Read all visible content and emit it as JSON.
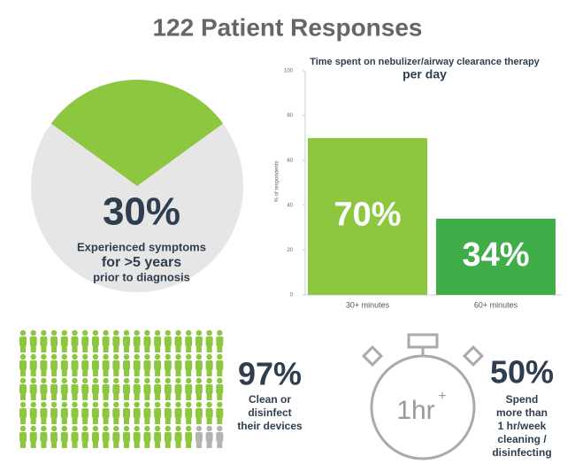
{
  "title": "122 Patient Responses",
  "chart_data": [
    {
      "type": "pie",
      "values": [
        30
      ],
      "value_labels": [
        "30%"
      ],
      "colors": [
        "#8dc63f",
        "#e6e6e6"
      ],
      "caption": [
        "Experienced symptoms",
        "for >5 years",
        "prior to diagnosis"
      ]
    },
    {
      "type": "bar",
      "title": "Time spent on nebulizer/airway clearance therapy",
      "subtitle": "per day",
      "ylabel": "% of respondents",
      "categories": [
        "30+ minutes",
        "60+ minutes"
      ],
      "values": [
        70,
        34
      ],
      "value_labels": [
        "70%",
        "34%"
      ],
      "colors": [
        "#8dc63f",
        "#3fae49"
      ],
      "ylim": [
        0,
        100
      ],
      "yticks": [
        0,
        20,
        40,
        60,
        80,
        100
      ]
    },
    {
      "type": "pictogram",
      "values": [
        97
      ],
      "value_labels": [
        "97%"
      ],
      "colors": [
        "#8dc63f",
        "#b3b3b3"
      ],
      "caption": [
        "Clean or",
        "disinfect",
        "their devices"
      ]
    },
    {
      "type": "stopwatch",
      "values": [
        50
      ],
      "value_labels": [
        "50%"
      ],
      "icon_text": [
        "1hr",
        "+"
      ],
      "caption": [
        "Spend",
        "more than",
        "1 hr/week",
        "cleaning /",
        "disinfecting"
      ]
    }
  ]
}
